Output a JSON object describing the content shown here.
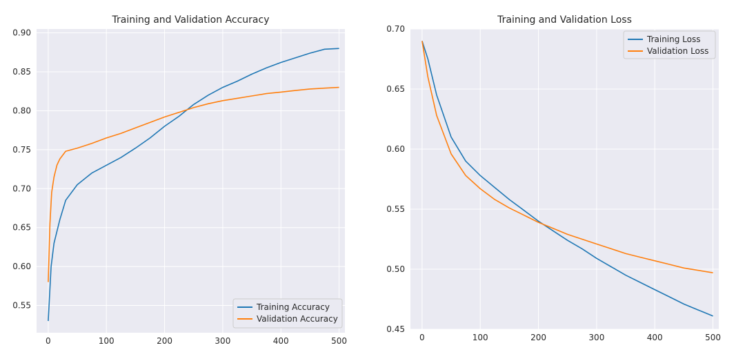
{
  "chart_data": [
    {
      "type": "line",
      "title": "Training and Validation Accuracy",
      "xlabel": "",
      "ylabel": "",
      "xlim": [
        -20,
        510
      ],
      "ylim": [
        0.515,
        0.905
      ],
      "xticks": [
        0,
        100,
        200,
        300,
        400,
        500
      ],
      "yticks": [
        0.55,
        0.6,
        0.65,
        0.7,
        0.75,
        0.8,
        0.85,
        0.9
      ],
      "ytick_labels": [
        "0.55",
        "0.60",
        "0.65",
        "0.70",
        "0.75",
        "0.80",
        "0.85",
        "0.90"
      ],
      "grid": true,
      "legend_position": "lower-right",
      "series": [
        {
          "name": "Training Accuracy",
          "color": "#1f77b4",
          "x": [
            0,
            5,
            10,
            20,
            30,
            50,
            75,
            100,
            125,
            150,
            175,
            200,
            225,
            250,
            275,
            300,
            325,
            350,
            375,
            400,
            425,
            450,
            475,
            500
          ],
          "y": [
            0.53,
            0.6,
            0.63,
            0.66,
            0.685,
            0.705,
            0.72,
            0.73,
            0.74,
            0.752,
            0.765,
            0.78,
            0.793,
            0.808,
            0.82,
            0.83,
            0.838,
            0.847,
            0.855,
            0.862,
            0.868,
            0.874,
            0.879,
            0.88
          ]
        },
        {
          "name": "Validation Accuracy",
          "color": "#ff7f0e",
          "x": [
            0,
            3,
            6,
            10,
            15,
            20,
            30,
            50,
            75,
            100,
            125,
            150,
            175,
            200,
            225,
            250,
            275,
            300,
            325,
            350,
            375,
            400,
            425,
            450,
            475,
            500
          ],
          "y": [
            0.58,
            0.655,
            0.695,
            0.715,
            0.73,
            0.738,
            0.748,
            0.752,
            0.758,
            0.765,
            0.771,
            0.778,
            0.785,
            0.792,
            0.798,
            0.804,
            0.809,
            0.813,
            0.816,
            0.819,
            0.822,
            0.824,
            0.826,
            0.828,
            0.829,
            0.83
          ]
        }
      ]
    },
    {
      "type": "line",
      "title": "Training and Validation Loss",
      "xlabel": "",
      "ylabel": "",
      "xlim": [
        -20,
        510
      ],
      "ylim": [
        0.45,
        0.7
      ],
      "xticks": [
        0,
        100,
        200,
        300,
        400,
        500
      ],
      "yticks": [
        0.45,
        0.5,
        0.55,
        0.6,
        0.65,
        0.7
      ],
      "ytick_labels": [
        "0.45",
        "0.50",
        "0.55",
        "0.60",
        "0.65",
        "0.70"
      ],
      "grid": true,
      "legend_position": "upper-right",
      "series": [
        {
          "name": "Training Loss",
          "color": "#1f77b4",
          "x": [
            0,
            10,
            25,
            50,
            75,
            100,
            125,
            150,
            175,
            200,
            225,
            250,
            275,
            300,
            325,
            350,
            375,
            400,
            425,
            450,
            475,
            500
          ],
          "y": [
            0.69,
            0.675,
            0.645,
            0.61,
            0.59,
            0.578,
            0.568,
            0.558,
            0.549,
            0.54,
            0.532,
            0.524,
            0.517,
            0.509,
            0.502,
            0.495,
            0.489,
            0.483,
            0.477,
            0.471,
            0.466,
            0.461
          ]
        },
        {
          "name": "Validation Loss",
          "color": "#ff7f0e",
          "x": [
            0,
            10,
            25,
            50,
            75,
            100,
            125,
            150,
            175,
            200,
            225,
            250,
            275,
            300,
            325,
            350,
            375,
            400,
            425,
            450,
            475,
            500
          ],
          "y": [
            0.69,
            0.66,
            0.628,
            0.596,
            0.578,
            0.567,
            0.558,
            0.551,
            0.545,
            0.539,
            0.534,
            0.529,
            0.525,
            0.521,
            0.517,
            0.513,
            0.51,
            0.507,
            0.504,
            0.501,
            0.499,
            0.497
          ]
        }
      ]
    }
  ]
}
